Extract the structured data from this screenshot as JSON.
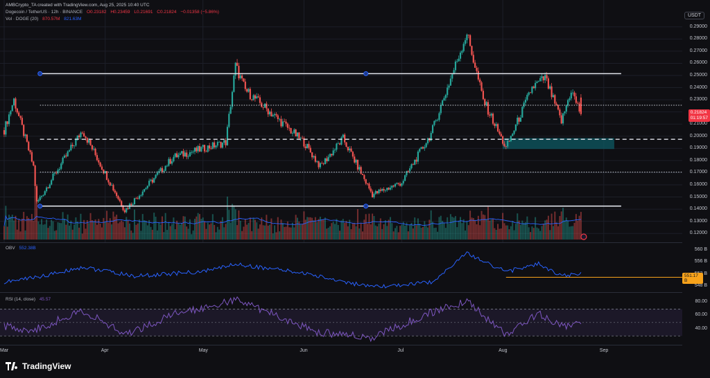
{
  "credit": "AMBCrypto_TA created with TradingView.com, Aug 25, 2025 10:40 UTC",
  "currency_button": "USDT",
  "legend_main": {
    "symbol": "Dogecoin / TetherUS · 12h · BINANCE",
    "open": "O0.23182",
    "high": "H0.23459",
    "low": "L0.21691",
    "close": "C0.21824",
    "change": "−0.01358 (−5.86%)"
  },
  "legend_vol": {
    "label": "Vol · DOGE (20)",
    "value": "870.57M",
    "ma": "821.63M"
  },
  "price_ticks": [
    "0.29000",
    "0.28000",
    "0.27000",
    "0.26000",
    "0.25000",
    "0.24000",
    "0.23000",
    "0.22000",
    "0.21000",
    "0.20000",
    "0.19000",
    "0.18000",
    "0.17000",
    "0.16000",
    "0.15000",
    "0.14000",
    "0.13000",
    "0.12000"
  ],
  "price_tag": {
    "price": "0.21824",
    "countdown": "01:19:57"
  },
  "obv": {
    "label": "OBV",
    "value": "552.38B",
    "ticks": [
      "560 B",
      "556 B",
      "552 B",
      "548 B"
    ],
    "tag": "551.17 B"
  },
  "rsi": {
    "label": "RSI (14, close)",
    "value": "45.57",
    "ticks": [
      "80.00",
      "60.00",
      "40.00"
    ]
  },
  "months": [
    "Mar",
    "Apr",
    "May",
    "Jun",
    "Jul",
    "Aug",
    "Sep"
  ],
  "brand": "TradingView",
  "colors": {
    "up": "#26a69a",
    "down": "#ef5350",
    "obv": "#2962ff",
    "rsi": "#7e57c2",
    "zone": "#0e5a63"
  },
  "chart_data": {
    "type": "candlestick",
    "title": "Dogecoin / TetherUS · 12h · BINANCE",
    "ylim": [
      0.115,
      0.295
    ],
    "levels": {
      "resistance": 0.2515,
      "mid_dotted": 0.2255,
      "mid_dashed": 0.1975,
      "low_dotted": 0.1705,
      "support": 0.1425
    },
    "demand_zone": {
      "from": 0.1895,
      "to": 0.1985
    },
    "key_points": [
      {
        "date": "Mar 01",
        "price": 0.205
      },
      {
        "date": "Mar 04",
        "price": 0.23
      },
      {
        "date": "Mar 10",
        "price": 0.175
      },
      {
        "date": "Mar 11",
        "price": 0.145
      },
      {
        "date": "Mar 25",
        "price": 0.205
      },
      {
        "date": "Apr 07",
        "price": 0.139
      },
      {
        "date": "Apr 22",
        "price": 0.183
      },
      {
        "date": "May 08",
        "price": 0.195
      },
      {
        "date": "May 11",
        "price": 0.258
      },
      {
        "date": "May 14",
        "price": 0.238
      },
      {
        "date": "Jun 01",
        "price": 0.195
      },
      {
        "date": "Jun 06",
        "price": 0.175
      },
      {
        "date": "Jun 13",
        "price": 0.198
      },
      {
        "date": "Jun 22",
        "price": 0.152
      },
      {
        "date": "Jul 01",
        "price": 0.162
      },
      {
        "date": "Jul 10",
        "price": 0.202
      },
      {
        "date": "Jul 21",
        "price": 0.285
      },
      {
        "date": "Jul 26",
        "price": 0.23
      },
      {
        "date": "Aug 02",
        "price": 0.19
      },
      {
        "date": "Aug 10",
        "price": 0.24
      },
      {
        "date": "Aug 14",
        "price": 0.248
      },
      {
        "date": "Aug 19",
        "price": 0.212
      },
      {
        "date": "Aug 22",
        "price": 0.238
      },
      {
        "date": "Aug 25",
        "price": 0.218
      }
    ],
    "obv_points": [
      {
        "date": "Mar 01",
        "value": 549.5
      },
      {
        "date": "Mar 15",
        "value": 552
      },
      {
        "date": "Mar 25",
        "value": 554.5
      },
      {
        "date": "Apr 10",
        "value": 551.5
      },
      {
        "date": "May 01",
        "value": 553
      },
      {
        "date": "May 11",
        "value": 555.5
      },
      {
        "date": "Jun 01",
        "value": 552.5
      },
      {
        "date": "Jun 22",
        "value": 547.8
      },
      {
        "date": "Jul 10",
        "value": 549.5
      },
      {
        "date": "Jul 21",
        "value": 559
      },
      {
        "date": "Aug 02",
        "value": 553
      },
      {
        "date": "Aug 12",
        "value": 555.5
      },
      {
        "date": "Aug 19",
        "value": 551.5
      },
      {
        "date": "Aug 25",
        "value": 552.4
      }
    ],
    "rsi_points": [
      {
        "date": "Mar 01",
        "value": 45
      },
      {
        "date": "Mar 10",
        "value": 38
      },
      {
        "date": "Mar 25",
        "value": 68
      },
      {
        "date": "Apr 07",
        "value": 32
      },
      {
        "date": "Apr 22",
        "value": 62
      },
      {
        "date": "May 11",
        "value": 84
      },
      {
        "date": "Jun 06",
        "value": 35
      },
      {
        "date": "Jun 22",
        "value": 28
      },
      {
        "date": "Jul 10",
        "value": 65
      },
      {
        "date": "Jul 21",
        "value": 82
      },
      {
        "date": "Aug 02",
        "value": 32
      },
      {
        "date": "Aug 12",
        "value": 64
      },
      {
        "date": "Aug 19",
        "value": 46
      },
      {
        "date": "Aug 25",
        "value": 45.57
      }
    ]
  }
}
